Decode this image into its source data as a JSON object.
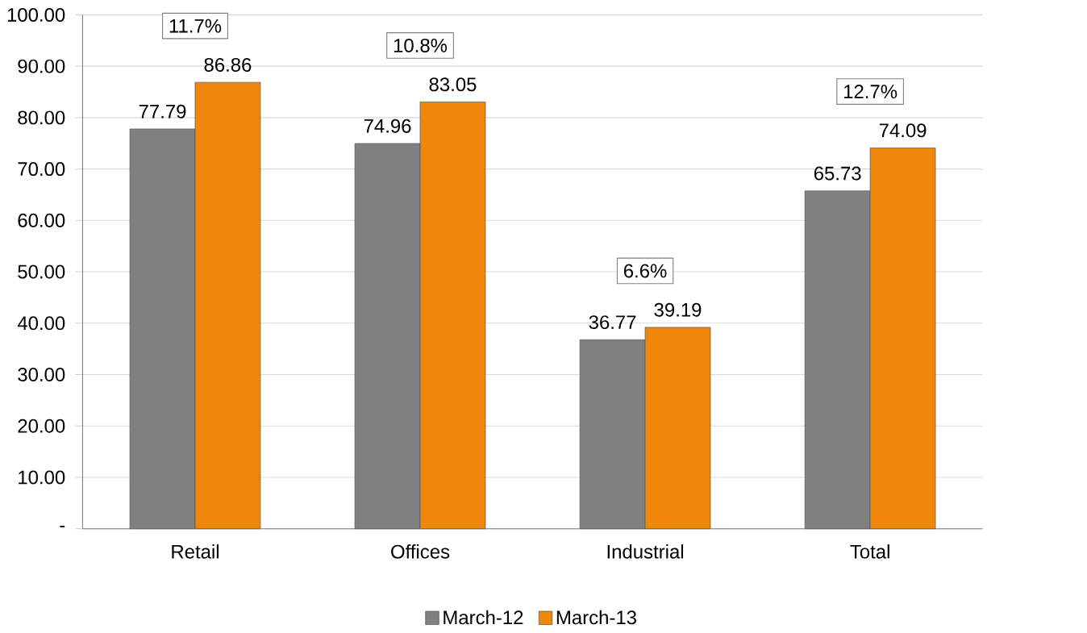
{
  "chart_data": {
    "type": "bar",
    "categories": [
      "Retail",
      "Offices",
      "Industrial",
      "Total"
    ],
    "series": [
      {
        "name": "March-12",
        "color": "#808080",
        "values": [
          77.79,
          74.96,
          36.77,
          65.73
        ]
      },
      {
        "name": "March-13",
        "color": "#f0860a",
        "values": [
          86.86,
          83.05,
          39.19,
          74.09
        ]
      }
    ],
    "ylim": [
      0,
      100
    ],
    "yticks": [
      {
        "value": 0,
        "label": "-"
      },
      {
        "value": 10,
        "label": "10.00"
      },
      {
        "value": 20,
        "label": "20.00"
      },
      {
        "value": 30,
        "label": "30.00"
      },
      {
        "value": 40,
        "label": "40.00"
      },
      {
        "value": 50,
        "label": "50.00"
      },
      {
        "value": 60,
        "label": "60.00"
      },
      {
        "value": 70,
        "label": "70.00"
      },
      {
        "value": 80,
        "label": "80.00"
      },
      {
        "value": 90,
        "label": "90.00"
      },
      {
        "value": 100,
        "label": "100.00"
      }
    ],
    "grid": "y",
    "legend": "bottom",
    "data_labels": true,
    "annotations": [
      "11.7%",
      "10.8%",
      "6.6%",
      "12.7%"
    ]
  }
}
